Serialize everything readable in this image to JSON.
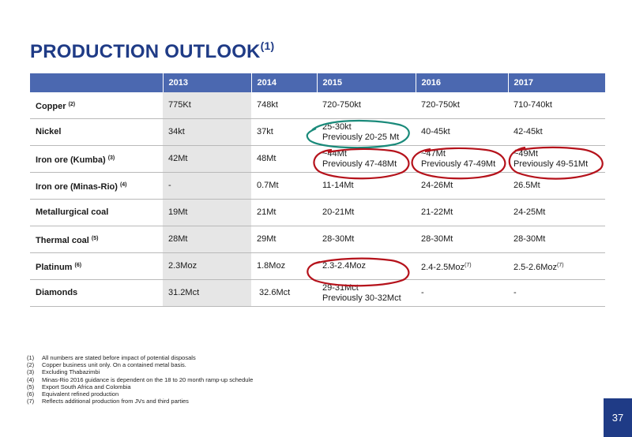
{
  "title": {
    "text": "PRODUCTION OUTLOOK",
    "sup": "(1)"
  },
  "table": {
    "header": [
      "",
      "2013",
      "2014",
      "2015",
      "2016",
      "2017"
    ],
    "rows": [
      {
        "label": "Copper",
        "fn": "(2)",
        "cells": [
          {
            "line1": "775Kt"
          },
          {
            "line1": "748kt"
          },
          {
            "line1": "720-750kt"
          },
          {
            "line1": "720-750kt"
          },
          {
            "line1": "710-740kt"
          }
        ]
      },
      {
        "label": "Nickel",
        "fn": "",
        "cells": [
          {
            "line1": "34kt"
          },
          {
            "line1": "37kt"
          },
          {
            "line1": "25-30kt",
            "line2": "Previously 20-25 Mt"
          },
          {
            "line1": "40-45kt"
          },
          {
            "line1": "42-45kt"
          }
        ]
      },
      {
        "label": "Iron ore (Kumba)",
        "fn": "(3)",
        "cells": [
          {
            "line1": "42Mt"
          },
          {
            "line1": "48Mt"
          },
          {
            "line1": "~44Mt",
            "line2": "Previously 47-48Mt"
          },
          {
            "line1": "~47Mt",
            "line2": "Previously 47-49Mt"
          },
          {
            "line1": "~49Mt",
            "line2": "Previously 49-51Mt"
          }
        ]
      },
      {
        "label": "Iron ore (Minas-Rio)",
        "fn": "(4)",
        "cells": [
          {
            "line1": "-"
          },
          {
            "line1": "0.7Mt"
          },
          {
            "line1": "11-14Mt"
          },
          {
            "line1": "24-26Mt"
          },
          {
            "line1": "26.5Mt"
          }
        ]
      },
      {
        "label": "Metallurgical coal",
        "fn": "",
        "cells": [
          {
            "line1": "19Mt"
          },
          {
            "line1": "21Mt"
          },
          {
            "line1": "20-21Mt"
          },
          {
            "line1": "21-22Mt"
          },
          {
            "line1": "24-25Mt"
          }
        ]
      },
      {
        "label": "Thermal coal",
        "fn": "(5)",
        "cells": [
          {
            "line1": "28Mt"
          },
          {
            "line1": "29Mt"
          },
          {
            "line1": "28-30Mt"
          },
          {
            "line1": "28-30Mt"
          },
          {
            "line1": "28-30Mt"
          }
        ]
      },
      {
        "label": "Platinum",
        "fn": "(6)",
        "cells": [
          {
            "line1": "2.3Moz"
          },
          {
            "line1": "1.8Moz"
          },
          {
            "line1": "2.3-2.4Moz"
          },
          {
            "line1": "2.4-2.5Moz",
            "fn": "(7)"
          },
          {
            "line1": "2.5-2.6Moz",
            "fn": "(7)"
          }
        ]
      },
      {
        "label": "Diamonds",
        "fn": "",
        "cells": [
          {
            "line1": "31.2Mct"
          },
          {
            "line1": " 32.6Mct"
          },
          {
            "line1": "29-31Mct",
            "line2": "Previously 30-32Mct"
          },
          {
            "line1": "-"
          },
          {
            "line1": "-"
          }
        ]
      }
    ]
  },
  "annotations": {
    "teal": "#1a8a7a",
    "red": "#b5121b"
  },
  "footnotes": [
    {
      "num": "(1)",
      "text": "All numbers are stated before impact of potential disposals"
    },
    {
      "num": "(2)",
      "text": "Copper business unit only.  On a contained metal basis."
    },
    {
      "num": "(3)",
      "text": "Excluding Thabazimbi"
    },
    {
      "num": "(4)",
      "text": "Minas-Rio 2016 guidance is dependent on the 18 to 20 month ramp-up schedule"
    },
    {
      "num": "(5)",
      "text": "Export South Africa and Colombia"
    },
    {
      "num": "(6)",
      "text": "Equivalent refined production"
    },
    {
      "num": "(7)",
      "text": "Reflects additional production from JVs and third parties"
    }
  ],
  "page_number": "37"
}
